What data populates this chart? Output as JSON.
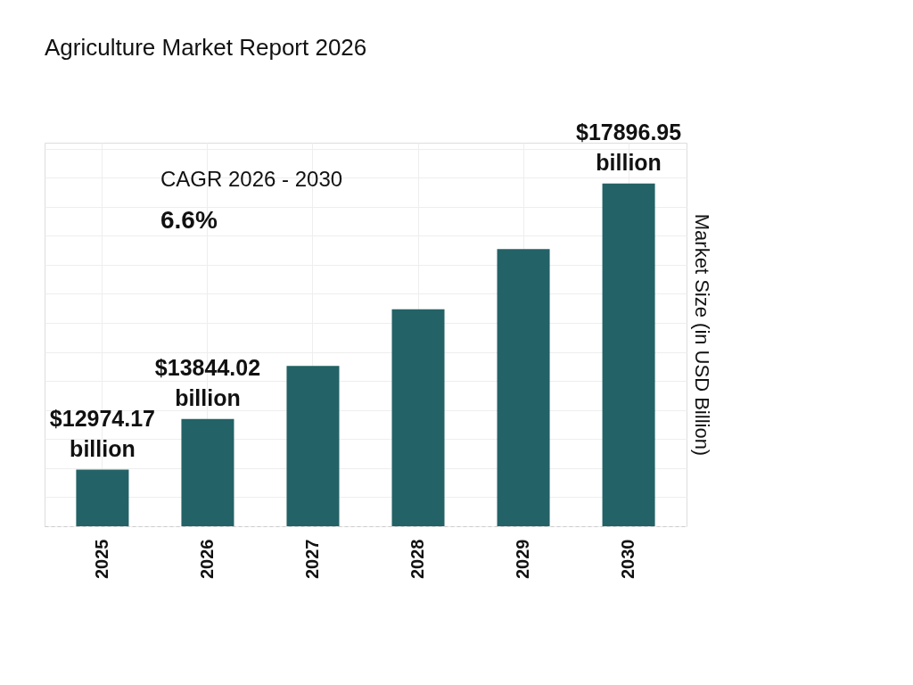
{
  "chart_data": {
    "type": "bar",
    "title": "Agriculture Market Report 2026",
    "categories": [
      "2025",
      "2026",
      "2027",
      "2028",
      "2029",
      "2030"
    ],
    "values": [
      12974.17,
      13844.02,
      14758,
      15732,
      16770,
      17896.95
    ],
    "value_labels": [
      "$12974.17 billion",
      "$13844.02 billion",
      null,
      null,
      null,
      "$17896.95 billion"
    ],
    "color": "#236266",
    "ylim": [
      12000,
      18600
    ],
    "ylabel": "Market Size (in USD Billion)",
    "annotations": [
      "CAGR 2026 - 2030",
      "6.6%"
    ],
    "grid": true
  }
}
